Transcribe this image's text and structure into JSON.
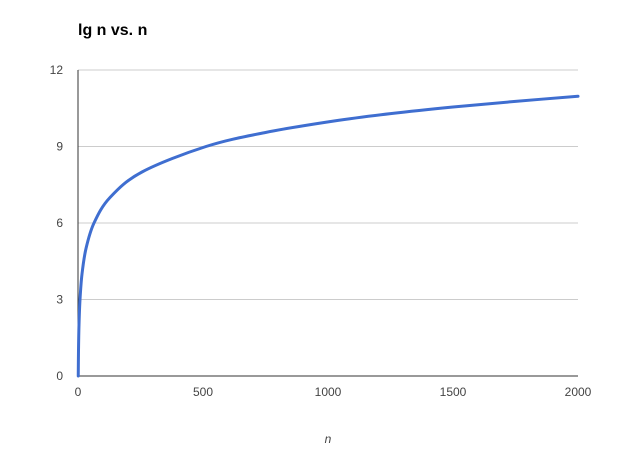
{
  "chart_data": {
    "type": "line",
    "title": "lg n vs. n",
    "xlabel": "n",
    "ylabel": "",
    "xlim": [
      0,
      2000
    ],
    "ylim": [
      0,
      12
    ],
    "x_ticks": [
      "0",
      "500",
      "1000",
      "1500",
      "2000"
    ],
    "y_ticks": [
      "0",
      "3",
      "6",
      "9",
      "12"
    ],
    "grid": true,
    "legend": "none",
    "series": [
      {
        "color": "#3f6ed0",
        "x": [
          1,
          2,
          4,
          8,
          16,
          32,
          64,
          128,
          256,
          512,
          750,
          1024,
          1250,
          1500,
          1750,
          2000
        ],
        "y": [
          0,
          1,
          2,
          3,
          4,
          5,
          6,
          7,
          8,
          9,
          9.55,
          10,
          10.29,
          10.55,
          10.77,
          10.97
        ]
      }
    ]
  },
  "colors": {
    "line": "#3f6ed0",
    "grid": "#cccccc",
    "axis": "#333333",
    "tick_text": "#444444"
  }
}
